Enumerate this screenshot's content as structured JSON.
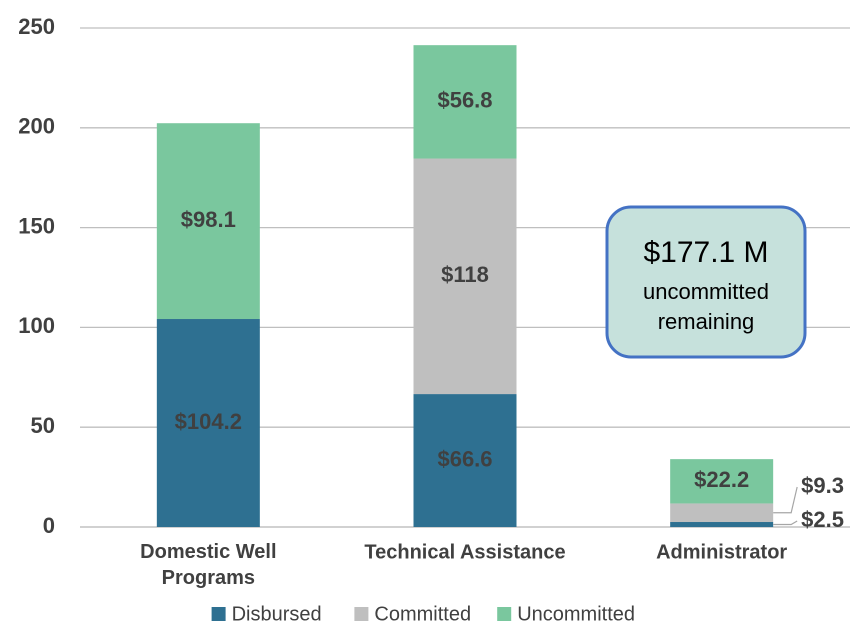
{
  "chart_data": {
    "type": "stacked_bar",
    "categories": [
      "Domestic Well Programs",
      "Technical Assistance",
      "Administrator"
    ],
    "series": [
      {
        "name": "Disbursed",
        "color": "#2e7091",
        "values": [
          104.2,
          66.6,
          2.5
        ],
        "value_labels": [
          "$104.2",
          "$66.6",
          "$2.5"
        ]
      },
      {
        "name": "Committed",
        "color": "#bfbfbf",
        "values": [
          null,
          118,
          9.3
        ],
        "value_labels": [
          null,
          "$118",
          "$9.3"
        ]
      },
      {
        "name": "Uncommitted",
        "color": "#7ac79e",
        "values": [
          98.1,
          56.8,
          22.2
        ],
        "value_labels": [
          "$98.1",
          "$56.8",
          "$22.2"
        ]
      }
    ],
    "ylim": [
      0,
      250
    ],
    "yticks": [
      0,
      50,
      100,
      150,
      200,
      250
    ],
    "grid": true,
    "legend": "bottom",
    "annotation": {
      "headline": "$177.1 M",
      "lines": [
        "uncommitted",
        "remaining"
      ]
    }
  }
}
